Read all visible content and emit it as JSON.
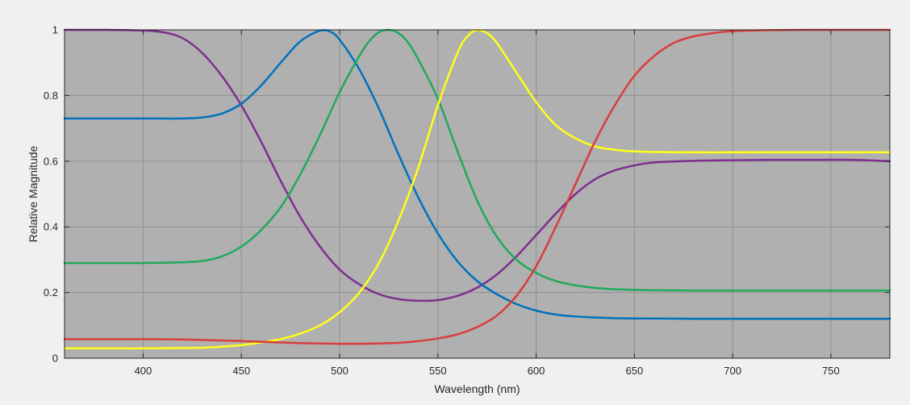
{
  "chart_data": {
    "type": "line",
    "title": "",
    "xlabel": "Wavelength (nm)",
    "ylabel": "Relative Magnitude",
    "xlim": [
      360,
      780
    ],
    "ylim": [
      0,
      1
    ],
    "x_ticks": [
      400,
      450,
      500,
      550,
      600,
      650,
      700,
      750
    ],
    "x_tick_labels": [
      "400",
      "450",
      "500",
      "550",
      "600",
      "650",
      "700",
      "750"
    ],
    "y_ticks": [
      0,
      0.2,
      0.4,
      0.6,
      0.8,
      1
    ],
    "y_tick_labels": [
      "0",
      "0.2",
      "0.4",
      "0.6",
      "0.8",
      "1"
    ],
    "grid": true,
    "legend": "none",
    "colors": {
      "figure_background": "#f0f0f0",
      "plot_background": "#b0b0b0",
      "grid": "#8f8f8f",
      "axis": "#262626"
    },
    "series": [
      {
        "color": "#7e2f8e",
        "x": [
          360,
          380,
          400,
          410,
          420,
          430,
          440,
          450,
          460,
          470,
          480,
          490,
          500,
          510,
          520,
          530,
          540,
          550,
          560,
          570,
          580,
          590,
          600,
          610,
          620,
          630,
          640,
          650,
          660,
          680,
          700,
          720,
          740,
          760,
          780
        ],
        "y": [
          1.0,
          1.0,
          0.998,
          0.993,
          0.975,
          0.93,
          0.86,
          0.77,
          0.66,
          0.54,
          0.43,
          0.34,
          0.27,
          0.225,
          0.195,
          0.18,
          0.175,
          0.177,
          0.19,
          0.215,
          0.255,
          0.31,
          0.375,
          0.44,
          0.5,
          0.545,
          0.572,
          0.587,
          0.596,
          0.601,
          0.603,
          0.604,
          0.604,
          0.604,
          0.6
        ]
      },
      {
        "color": "#0072bd",
        "x": [
          360,
          380,
          400,
          420,
          430,
          440,
          450,
          460,
          470,
          480,
          490,
          495,
          500,
          510,
          520,
          530,
          540,
          550,
          560,
          570,
          580,
          590,
          600,
          610,
          620,
          630,
          640,
          650,
          660,
          680,
          700,
          720,
          740,
          760,
          780
        ],
        "y": [
          0.73,
          0.73,
          0.73,
          0.73,
          0.733,
          0.745,
          0.775,
          0.83,
          0.9,
          0.965,
          0.998,
          0.995,
          0.97,
          0.88,
          0.76,
          0.62,
          0.49,
          0.38,
          0.295,
          0.235,
          0.195,
          0.165,
          0.145,
          0.133,
          0.127,
          0.124,
          0.122,
          0.121,
          0.121,
          0.12,
          0.12,
          0.12,
          0.12,
          0.12,
          0.12
        ]
      },
      {
        "color": "#21a95c",
        "x": [
          360,
          380,
          400,
          420,
          430,
          440,
          450,
          460,
          470,
          480,
          490,
          500,
          510,
          515,
          520,
          525,
          530,
          535,
          540,
          550,
          560,
          570,
          580,
          590,
          600,
          610,
          620,
          630,
          640,
          650,
          660,
          680,
          700,
          720,
          740,
          760,
          780
        ],
        "y": [
          0.29,
          0.29,
          0.29,
          0.292,
          0.296,
          0.31,
          0.34,
          0.39,
          0.46,
          0.56,
          0.68,
          0.81,
          0.92,
          0.965,
          0.993,
          1.0,
          0.99,
          0.96,
          0.91,
          0.79,
          0.63,
          0.48,
          0.37,
          0.3,
          0.26,
          0.235,
          0.222,
          0.214,
          0.21,
          0.208,
          0.207,
          0.206,
          0.206,
          0.206,
          0.206,
          0.206,
          0.206
        ]
      },
      {
        "color": "#ffff1a",
        "x": [
          360,
          380,
          400,
          420,
          430,
          440,
          450,
          460,
          470,
          480,
          490,
          500,
          510,
          520,
          530,
          540,
          550,
          560,
          565,
          570,
          575,
          580,
          590,
          600,
          610,
          620,
          630,
          640,
          650,
          660,
          680,
          700,
          720,
          740,
          760,
          780
        ],
        "y": [
          0.03,
          0.03,
          0.03,
          0.031,
          0.032,
          0.035,
          0.04,
          0.048,
          0.058,
          0.075,
          0.1,
          0.14,
          0.2,
          0.29,
          0.42,
          0.58,
          0.77,
          0.93,
          0.98,
          1.0,
          0.99,
          0.96,
          0.87,
          0.78,
          0.71,
          0.67,
          0.645,
          0.635,
          0.63,
          0.628,
          0.627,
          0.627,
          0.627,
          0.627,
          0.627,
          0.627
        ]
      },
      {
        "color": "#d93d3d",
        "x": [
          360,
          380,
          400,
          420,
          440,
          460,
          480,
          500,
          510,
          520,
          530,
          540,
          550,
          560,
          570,
          580,
          590,
          600,
          610,
          620,
          630,
          640,
          650,
          660,
          670,
          680,
          690,
          700,
          720,
          740,
          760,
          780
        ],
        "y": [
          0.058,
          0.058,
          0.058,
          0.057,
          0.054,
          0.05,
          0.046,
          0.044,
          0.044,
          0.045,
          0.047,
          0.052,
          0.06,
          0.073,
          0.095,
          0.13,
          0.19,
          0.28,
          0.4,
          0.53,
          0.66,
          0.77,
          0.86,
          0.92,
          0.96,
          0.98,
          0.99,
          0.996,
          0.999,
          1.0,
          1.0,
          1.0
        ]
      }
    ]
  }
}
